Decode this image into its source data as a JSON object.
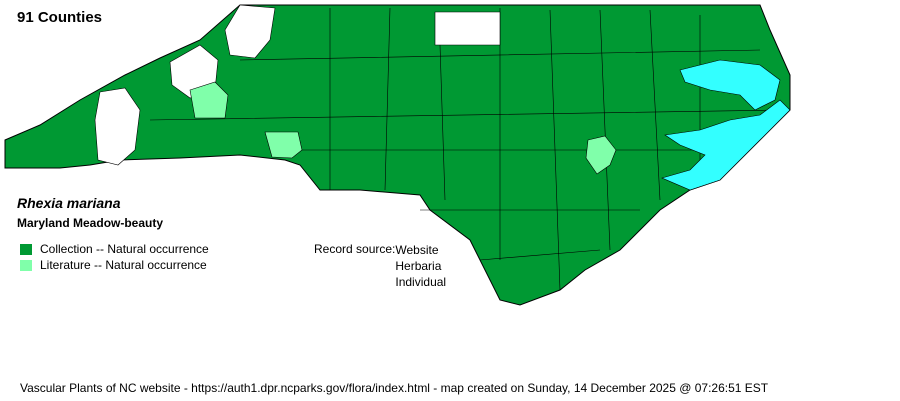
{
  "header": {
    "county_count": "91 Counties"
  },
  "species": {
    "scientific_name": "Rhexia mariana",
    "common_name": "Maryland Meadow-beauty"
  },
  "legend": [
    {
      "label": "Collection -- Natural occurrence",
      "color": "#009933"
    },
    {
      "label": "Literature -- Natural occurrence",
      "color": "#80ffaa"
    }
  ],
  "record_source": {
    "label": "Record source:",
    "values": [
      "Website",
      "Herbaria",
      "Individual"
    ]
  },
  "map": {
    "colors": {
      "collection": "#009933",
      "literature": "#80ffaa",
      "absent": "#ffffff",
      "water": "#33ffff",
      "border": "#000000"
    }
  },
  "footer": "Vascular Plants of NC website - https://auth1.dpr.ncparks.gov/flora/index.html - map created on Sunday, 14 December 2025 @ 07:26:51 EST"
}
